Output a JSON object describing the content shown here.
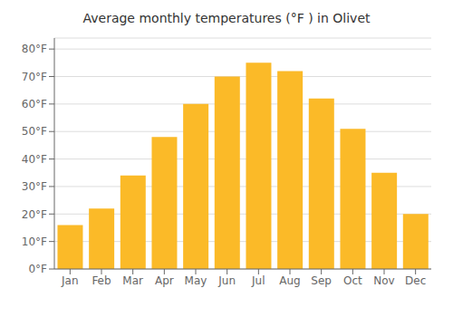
{
  "chart_data": {
    "type": "bar",
    "title": "Average monthly temperatures (°F ) in Olivet",
    "categories": [
      "Jan",
      "Feb",
      "Mar",
      "Apr",
      "May",
      "Jun",
      "Jul",
      "Aug",
      "Sep",
      "Oct",
      "Nov",
      "Dec"
    ],
    "values": [
      16,
      22,
      34,
      48,
      60,
      70,
      75,
      72,
      62,
      51,
      35,
      20
    ],
    "color": "#FBBA28",
    "ylim": [
      0,
      84
    ],
    "yticks": [
      {
        "value": 0,
        "label": "0°F"
      },
      {
        "value": 10,
        "label": "10°F"
      },
      {
        "value": 20,
        "label": "20°F"
      },
      {
        "value": 30,
        "label": "30°F"
      },
      {
        "value": 40,
        "label": "40°F"
      },
      {
        "value": 50,
        "label": "50°F"
      },
      {
        "value": 60,
        "label": "60°F"
      },
      {
        "value": 70,
        "label": "70°F"
      },
      {
        "value": 80,
        "label": "80°F"
      }
    ],
    "grid": true
  }
}
